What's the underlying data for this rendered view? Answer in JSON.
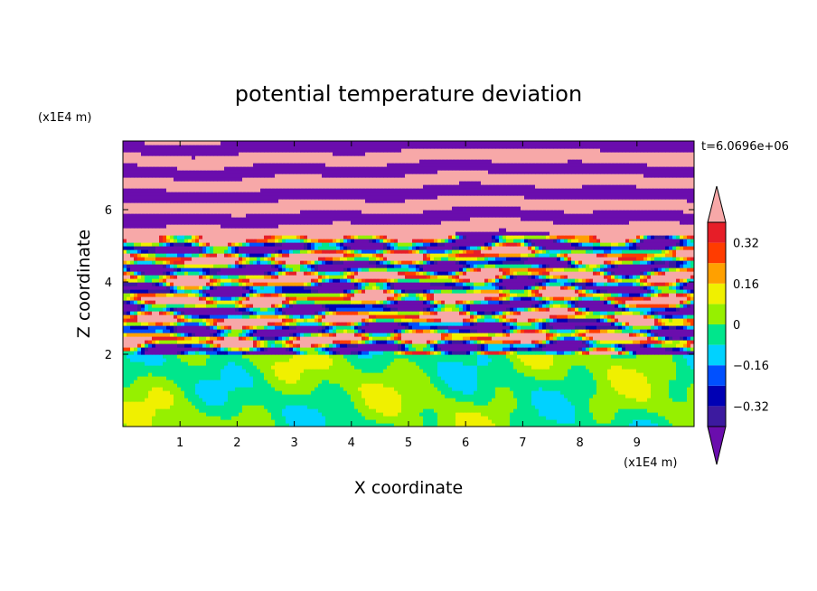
{
  "chart_data": {
    "type": "heatmap",
    "title": "potential temperature deviation",
    "xlabel": "X coordinate",
    "ylabel": "Z coordinate",
    "x_unit": "(x1E4 m)",
    "z_unit": "(x1E4 m)",
    "time_label": "t=6.0696e+06",
    "xlim": [
      0,
      10
    ],
    "ylim": [
      0,
      7.9
    ],
    "x_ticks": [
      1,
      2,
      3,
      4,
      5,
      6,
      7,
      8,
      9
    ],
    "y_ticks": [
      2,
      4,
      6
    ],
    "colorbar": {
      "levels": [
        -0.4,
        -0.32,
        -0.24,
        -0.16,
        -0.08,
        0,
        0.08,
        0.16,
        0.24,
        0.32,
        0.4
      ],
      "tick_labels": [
        "0.32",
        "0.16",
        "0",
        "−0.16",
        "−0.32"
      ],
      "tick_values": [
        0.32,
        0.16,
        0,
        -0.16,
        -0.32
      ],
      "colors": [
        "#6a0dad",
        "#3c1a9f",
        "#0000b4",
        "#0050ff",
        "#00d2ff",
        "#00e68c",
        "#96f000",
        "#f0f000",
        "#ffa000",
        "#ff3c00",
        "#e61e28",
        "#f7a8a8"
      ],
      "extend": "both"
    },
    "description_regions": [
      {
        "z_range": [
          0,
          2.0
        ],
        "dominant": "near-zero (green / light green)"
      },
      {
        "z_range": [
          2.0,
          5.5
        ],
        "dominant": "mixed layered bands (all colors)"
      },
      {
        "z_range": [
          5.5,
          7.9
        ],
        "dominant": "alternating pink / purple layers"
      }
    ]
  }
}
